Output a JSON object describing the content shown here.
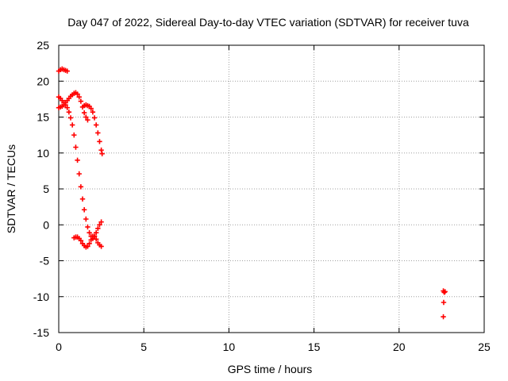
{
  "chart_data": {
    "type": "scatter",
    "title": "Day 047 of 2022, Sidereal Day-to-day VTEC variation (SDTVAR) for receiver tuva",
    "xlabel": "GPS time / hours",
    "ylabel": "SDTVAR / TECUs",
    "xlim": [
      0,
      25
    ],
    "ylim": [
      -15,
      25
    ],
    "x_ticks": [
      0,
      5,
      10,
      15,
      20,
      25
    ],
    "y_ticks": [
      -15,
      -10,
      -5,
      0,
      5,
      10,
      15,
      20,
      25
    ],
    "x_tick_labels": [
      "0",
      "5",
      "10",
      "15",
      "20",
      "25"
    ],
    "y_tick_labels": [
      "-15",
      "-10",
      "-5",
      "0",
      "5",
      "10",
      "15",
      "20",
      "25"
    ],
    "grid": true,
    "marker": "+",
    "color": "#ff0000",
    "series": [
      {
        "points": [
          [
            0.0,
            21.4
          ],
          [
            0.1,
            21.6
          ],
          [
            0.2,
            21.7
          ],
          [
            0.3,
            21.6
          ],
          [
            0.4,
            21.5
          ],
          [
            0.5,
            21.4
          ],
          [
            0.0,
            17.8
          ],
          [
            0.1,
            17.6
          ],
          [
            0.2,
            17.3
          ],
          [
            0.3,
            17.0
          ],
          [
            0.4,
            16.7
          ],
          [
            0.5,
            16.3
          ],
          [
            0.6,
            15.7
          ],
          [
            0.7,
            14.9
          ],
          [
            0.8,
            13.9
          ],
          [
            0.9,
            12.5
          ],
          [
            1.0,
            10.8
          ],
          [
            1.1,
            9.0
          ],
          [
            1.2,
            7.1
          ],
          [
            1.3,
            5.3
          ],
          [
            1.4,
            3.6
          ],
          [
            1.5,
            2.1
          ],
          [
            1.6,
            0.8
          ],
          [
            1.7,
            -0.3
          ],
          [
            1.8,
            -1.1
          ],
          [
            1.9,
            -1.6
          ],
          [
            2.0,
            -1.9
          ],
          [
            2.1,
            -1.6
          ],
          [
            2.2,
            -1.1
          ],
          [
            2.3,
            -0.5
          ],
          [
            2.4,
            0.0
          ],
          [
            2.5,
            0.4
          ],
          [
            0.0,
            16.3
          ],
          [
            0.1,
            16.4
          ],
          [
            0.2,
            16.5
          ],
          [
            0.3,
            16.7
          ],
          [
            0.4,
            17.0
          ],
          [
            0.5,
            17.3
          ],
          [
            0.6,
            17.6
          ],
          [
            0.7,
            17.9
          ],
          [
            0.8,
            18.1
          ],
          [
            0.9,
            18.3
          ],
          [
            1.0,
            18.4
          ],
          [
            1.1,
            18.2
          ],
          [
            1.2,
            17.8
          ],
          [
            1.3,
            17.2
          ],
          [
            1.4,
            16.4
          ],
          [
            1.5,
            15.6
          ],
          [
            1.6,
            15.0
          ],
          [
            1.7,
            14.6
          ],
          [
            1.5,
            16.6
          ],
          [
            1.6,
            16.7
          ],
          [
            1.7,
            16.6
          ],
          [
            1.8,
            16.5
          ],
          [
            1.9,
            16.2
          ],
          [
            2.0,
            15.7
          ],
          [
            2.1,
            14.9
          ],
          [
            2.2,
            13.9
          ],
          [
            2.3,
            12.8
          ],
          [
            2.4,
            11.6
          ],
          [
            2.5,
            10.4
          ],
          [
            2.55,
            9.9
          ],
          [
            0.9,
            -1.8
          ],
          [
            1.0,
            -1.7
          ],
          [
            1.1,
            -1.7
          ],
          [
            1.2,
            -1.9
          ],
          [
            1.3,
            -2.2
          ],
          [
            1.4,
            -2.6
          ],
          [
            1.5,
            -2.9
          ],
          [
            1.6,
            -3.1
          ],
          [
            1.7,
            -3.0
          ],
          [
            1.8,
            -2.6
          ],
          [
            1.9,
            -2.1
          ],
          [
            2.0,
            -1.6
          ],
          [
            2.1,
            -1.6
          ],
          [
            2.2,
            -2.0
          ],
          [
            2.3,
            -2.5
          ],
          [
            2.4,
            -2.8
          ],
          [
            2.5,
            -3.0
          ],
          [
            22.6,
            -9.2
          ],
          [
            22.65,
            -9.4
          ],
          [
            22.7,
            -9.3
          ],
          [
            22.62,
            -10.8
          ],
          [
            22.6,
            -12.8
          ]
        ]
      }
    ]
  }
}
